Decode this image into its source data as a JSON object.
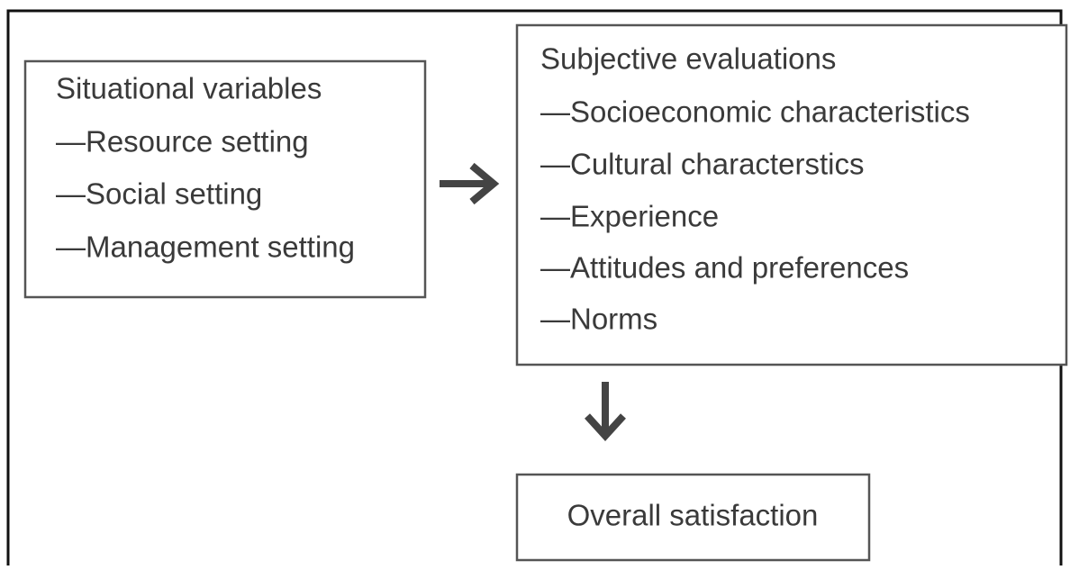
{
  "nodes": [
    {
      "title": "Situational variables",
      "items": [
        "—Resource setting",
        "—Social setting",
        "—Management setting"
      ]
    },
    {
      "title": "Subjective evaluations",
      "items": [
        "—Socioeconomic characteristics",
        "—Cultural characterstics",
        "—Experience",
        "—Attitudes and preferences",
        "—Norms"
      ]
    },
    {
      "title": "Overall satisfaction"
    }
  ]
}
